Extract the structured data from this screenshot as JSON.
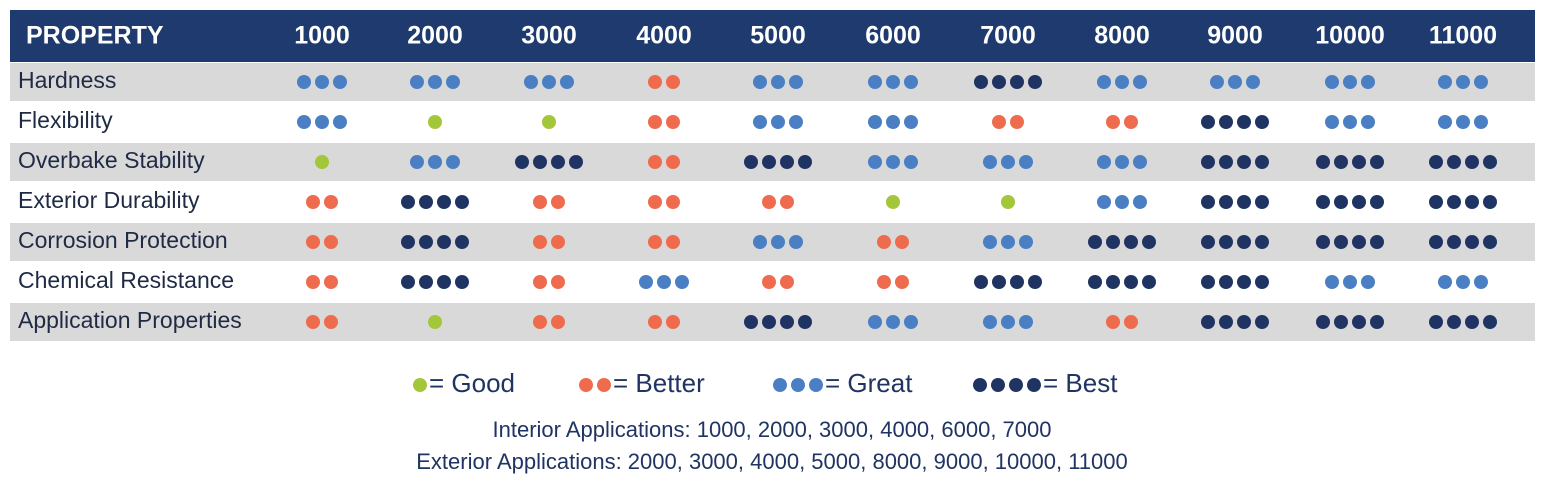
{
  "table": {
    "header": [
      "PROPERTY",
      "1000",
      "2000",
      "3000",
      "4000",
      "5000",
      "6000",
      "7000",
      "8000",
      "9000",
      "10000",
      "11000"
    ],
    "rows": [
      {
        "label": "Hardness",
        "values": [
          3,
          3,
          3,
          2,
          3,
          3,
          4,
          3,
          3,
          3,
          3
        ]
      },
      {
        "label": "Flexibility",
        "values": [
          3,
          1,
          1,
          2,
          3,
          3,
          2,
          2,
          4,
          3,
          3
        ]
      },
      {
        "label": "Overbake Stability",
        "values": [
          1,
          3,
          4,
          2,
          4,
          3,
          3,
          3,
          4,
          4,
          4
        ]
      },
      {
        "label": "Exterior Durability",
        "values": [
          2,
          4,
          2,
          2,
          2,
          1,
          1,
          3,
          4,
          4,
          4
        ]
      },
      {
        "label": "Corrosion Protection",
        "values": [
          2,
          4,
          2,
          2,
          3,
          2,
          3,
          4,
          4,
          4,
          4
        ]
      },
      {
        "label": "Chemical Resistance",
        "values": [
          2,
          4,
          2,
          3,
          2,
          2,
          4,
          4,
          4,
          3,
          3
        ]
      },
      {
        "label": "Application Properties",
        "values": [
          2,
          1,
          2,
          2,
          4,
          3,
          3,
          2,
          4,
          4,
          4
        ]
      }
    ]
  },
  "legend": [
    {
      "count": 1,
      "color": "#a4c639",
      "label": "= Good"
    },
    {
      "count": 2,
      "color": "#ee6c4d",
      "label": "= Better"
    },
    {
      "count": 3,
      "color": "#4a7fc4",
      "label": "= Great"
    },
    {
      "count": 4,
      "color": "#1f3463",
      "label": "= Best"
    }
  ],
  "notes": [
    "Interior Applications: 1000, 2000, 3000, 4000, 6000, 7000",
    "Exterior Applications: 2000, 3000, 4000, 5000, 8000, 9000, 10000, 11000"
  ]
}
